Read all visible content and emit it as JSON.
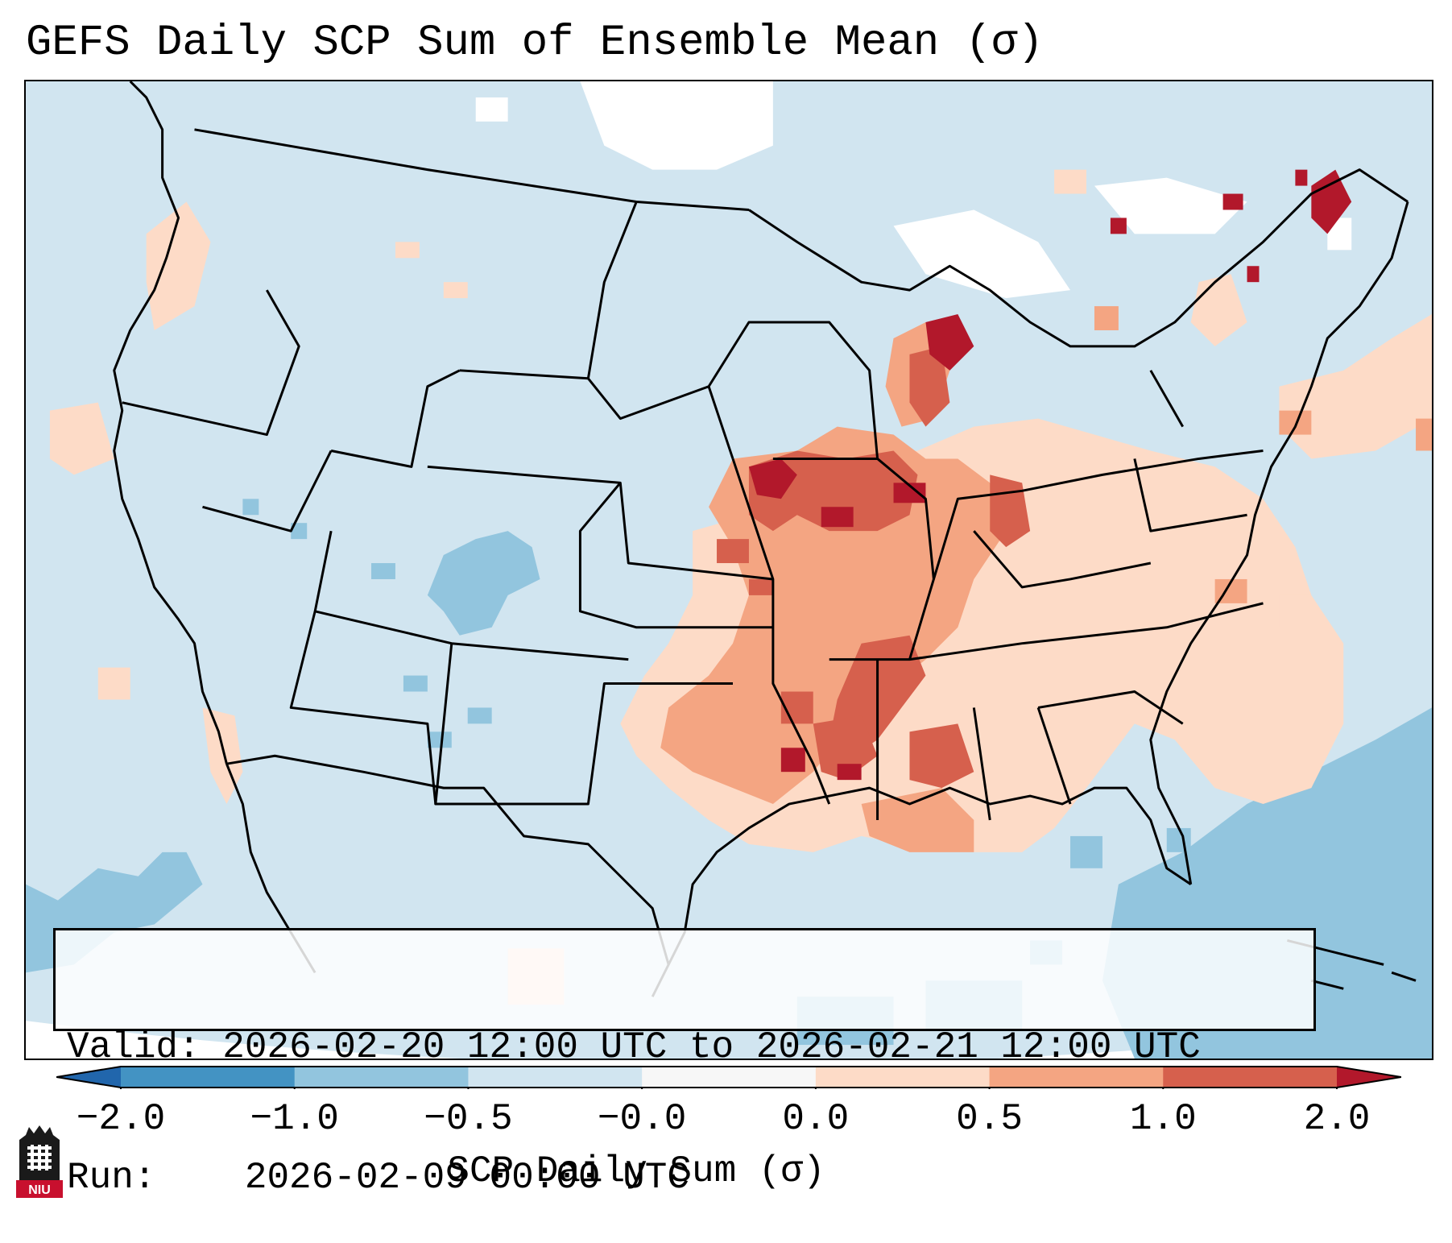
{
  "title": "GEFS Daily SCP Sum of Ensemble Mean (σ)",
  "info_box": {
    "valid_label": "Valid:",
    "valid_value": "2026-02-20 12:00 UTC to 2026-02-21 12:00 UTC",
    "run_label": "Run:",
    "run_value": "2026-02-09 00:00 UTC"
  },
  "colorbar": {
    "label": "SCP Daily Sum (σ)",
    "ticks": [
      "−2.0",
      "−1.0",
      "−0.5",
      "−0.0",
      "0.0",
      "0.5",
      "1.0",
      "2.0"
    ],
    "bins": [
      {
        "from": -2.0,
        "to": -1.0,
        "color": "#4393c3"
      },
      {
        "from": -1.0,
        "to": -0.5,
        "color": "#92c5de"
      },
      {
        "from": -0.5,
        "to": -0.0,
        "color": "#d1e5f0"
      },
      {
        "from": -0.0,
        "to": 0.0,
        "color": "#f7f7f7"
      },
      {
        "from": 0.0,
        "to": 0.5,
        "color": "#fddbc7"
      },
      {
        "from": 0.5,
        "to": 1.0,
        "color": "#f4a582"
      },
      {
        "from": 1.0,
        "to": 2.0,
        "color": "#d6604d"
      }
    ],
    "under_color": "#2166ac",
    "over_color": "#b2182b"
  },
  "colors": {
    "background_field": "#d1e5f0",
    "neg_moderate": "#92c5de",
    "neutral": "#ffffff",
    "pos_low": "#fddbc7",
    "pos_mid": "#f4a582",
    "pos_high": "#d6604d",
    "pos_extreme": "#b2182b",
    "borders": "#000000"
  },
  "logo": {
    "text": "NIU",
    "icon": "niu-building-icon"
  }
}
